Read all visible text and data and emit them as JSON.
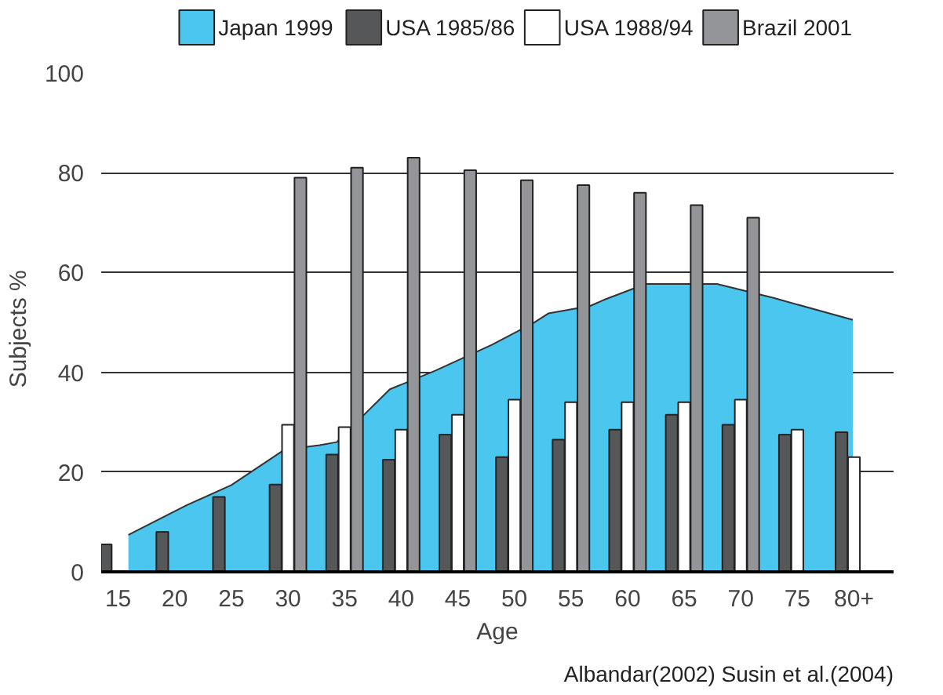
{
  "chart_data": {
    "type": "bar",
    "xlabel": "Age",
    "ylabel": "Subjects   %",
    "x": [
      15,
      20,
      25,
      30,
      35,
      40,
      45,
      50,
      55,
      60,
      65,
      70,
      75,
      80
    ],
    "xlim": [
      13.5,
      83.5
    ],
    "xticks": [
      15,
      20,
      25,
      30,
      35,
      40,
      45,
      50,
      55,
      60,
      65,
      70,
      75,
      {
        "value": 80,
        "label": "80+"
      }
    ],
    "ylim": [
      0,
      100
    ],
    "yticks": [
      0,
      20,
      40,
      60,
      80,
      100
    ],
    "grid": "y",
    "legend": "top",
    "series": [
      {
        "name": "Japan 1999",
        "type": "area",
        "color": "#4bc6ef",
        "x": [
          15.9,
          21,
          25,
          29.7,
          32.8,
          34.3,
          36.5,
          39,
          43,
          48,
          51.7,
          53,
          56.7,
          58,
          61.6,
          67.9,
          72.9,
          79.9
        ],
        "values": [
          7.4,
          13.3,
          17.4,
          24.5,
          25.4,
          26,
          31,
          36.6,
          40.3,
          45.5,
          49.9,
          51.8,
          53.3,
          54.6,
          57.7,
          57.7,
          54.9,
          50.5
        ]
      },
      {
        "name": "USA 1985/86",
        "color": "#555759",
        "values": [
          5.5,
          8,
          15,
          17.5,
          23.5,
          22.5,
          27.5,
          23,
          26.5,
          28.5,
          31.5,
          29.5,
          27.5,
          28
        ]
      },
      {
        "name": "USA 1988/94",
        "color": "#ffffff",
        "values": [
          null,
          null,
          null,
          29.5,
          29,
          28.5,
          31.5,
          34.5,
          34,
          34,
          34,
          34.5,
          28.5,
          23
        ]
      },
      {
        "name": "Brazil 2001",
        "color": "#939598",
        "values": [
          null,
          null,
          null,
          79,
          81,
          83,
          80.5,
          78.5,
          77.5,
          76,
          73.5,
          71,
          null,
          null
        ]
      }
    ],
    "annotations": [
      "Albandar(2002) Susin et al.(2004)"
    ]
  }
}
